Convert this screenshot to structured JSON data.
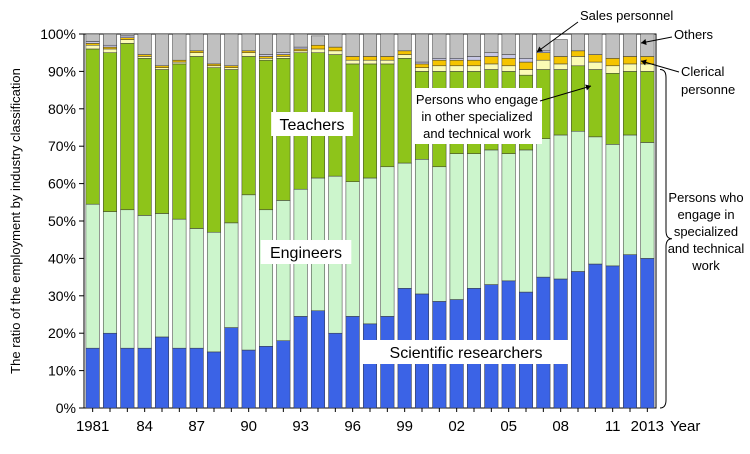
{
  "chart_data": {
    "type": "bar",
    "stacked": true,
    "ylabel": "The ratio of the employment by industry classification",
    "x_unit_label": "Year",
    "ylim": [
      0,
      100
    ],
    "y_ticks": [
      "0%",
      "10%",
      "20%",
      "30%",
      "40%",
      "50%",
      "60%",
      "70%",
      "80%",
      "90%",
      "100%"
    ],
    "categories": [
      "1981",
      "1982",
      "1983",
      "1984",
      "1985",
      "1986",
      "1987",
      "1988",
      "1989",
      "1990",
      "1991",
      "1992",
      "1993",
      "1994",
      "1995",
      "1996",
      "1997",
      "1998",
      "1999",
      "2000",
      "2001",
      "2002",
      "2003",
      "2004",
      "2005",
      "2006",
      "2007",
      "2008",
      "2009",
      "2010",
      "2011",
      "2012",
      "2013"
    ],
    "x_tick_labels": [
      "1981",
      "",
      "",
      "84",
      "",
      "",
      "87",
      "",
      "",
      "90",
      "",
      "",
      "93",
      "",
      "",
      "96",
      "",
      "",
      "99",
      "",
      "",
      "02",
      "",
      "",
      "05",
      "",
      "",
      "08",
      "",
      "",
      "11",
      "",
      "2013"
    ],
    "series": [
      {
        "name": "Scientific researchers",
        "color": "#3b63e6",
        "values": [
          16,
          20,
          16,
          16,
          19,
          16,
          16,
          15,
          21.5,
          15.5,
          16.5,
          18,
          24.5,
          26,
          20,
          24.5,
          22.5,
          24.5,
          32,
          30.5,
          28.5,
          29,
          32,
          33,
          34,
          31,
          35,
          34.5,
          36.5,
          38.5,
          38,
          41,
          40
        ]
      },
      {
        "name": "Engineers",
        "color": "#ccf5cc",
        "values": [
          38.5,
          32.5,
          37,
          35.5,
          33,
          34.5,
          32,
          32,
          28,
          41.5,
          36.5,
          37.5,
          34,
          35.5,
          42,
          36,
          39,
          40,
          33.5,
          36,
          36,
          39,
          36,
          36,
          34,
          38,
          37,
          38.5,
          37.5,
          34,
          32.5,
          32,
          31
        ]
      },
      {
        "name": "Teachers",
        "color": "#8ec41a",
        "values": [
          41.5,
          42.5,
          44.5,
          42,
          38.5,
          41.5,
          46,
          44,
          41,
          37,
          40,
          38,
          36.5,
          33.5,
          32.5,
          31.5,
          30.5,
          27.5,
          28,
          23.5,
          25.5,
          22,
          22,
          21.5,
          22,
          20,
          18.5,
          17.5,
          17.5,
          18,
          19,
          17,
          19
        ]
      },
      {
        "name": "Persons who engage in other specialized and technical work",
        "color": "#fbfbb4",
        "values": [
          1,
          1,
          1,
          0.5,
          0.5,
          0.5,
          1,
          0.5,
          0.5,
          1,
          0.5,
          0.5,
          0.5,
          1,
          1,
          1,
          1,
          1,
          1,
          1,
          1.5,
          1.5,
          1.5,
          1.5,
          1.5,
          1.5,
          2.5,
          1.5,
          2.5,
          2,
          2,
          2,
          2
        ]
      },
      {
        "name": "Clerical personne",
        "color": "#f5c400",
        "values": [
          0.5,
          0.5,
          0.5,
          0.5,
          0.5,
          0.5,
          0.5,
          0.5,
          0.5,
          0.5,
          0.5,
          0.5,
          0.5,
          1,
          1,
          1,
          1,
          1,
          1,
          1,
          1.5,
          1.5,
          1.5,
          2,
          2,
          2,
          2,
          2,
          1.5,
          2,
          2,
          2,
          2
        ]
      },
      {
        "name": "Sales personnel",
        "color": "#c8c8e6",
        "values": [
          0.5,
          0.5,
          0.5,
          0,
          0,
          0,
          0,
          0,
          0,
          0,
          0.5,
          0.5,
          0.5,
          0,
          0,
          0,
          0,
          0,
          0,
          0.5,
          0.5,
          0.5,
          1,
          1,
          1,
          1,
          0.5,
          0,
          0,
          0,
          0,
          0,
          0
        ]
      },
      {
        "name": "Others",
        "color": "#c0c0c0",
        "values": [
          2,
          3,
          0.5,
          5.5,
          8.5,
          7,
          4.5,
          8,
          8.5,
          4.5,
          5.5,
          5,
          3.5,
          2.5,
          3.5,
          6,
          6,
          6,
          4.5,
          7.5,
          6.5,
          6.5,
          6,
          5,
          5.5,
          6.5,
          4.5,
          4.5,
          4.5,
          5.5,
          6.5,
          6,
          6
        ]
      }
    ],
    "annotations": [
      {
        "id": "teachers",
        "text": "Teachers"
      },
      {
        "id": "engineers",
        "text": "Engineers"
      },
      {
        "id": "scientific",
        "text": "Scientific researchers"
      },
      {
        "id": "other-specialized",
        "lines": [
          "Persons who engage",
          "in other specialized",
          "and technical work"
        ]
      },
      {
        "id": "sales",
        "text": "Sales personnel"
      },
      {
        "id": "others",
        "text": "Others"
      },
      {
        "id": "clerical",
        "lines": [
          "Clerical",
          "personne"
        ]
      },
      {
        "id": "bracket-label",
        "lines": [
          "Persons who",
          "engage in",
          "specialized",
          "and technical",
          "work"
        ]
      }
    ]
  }
}
